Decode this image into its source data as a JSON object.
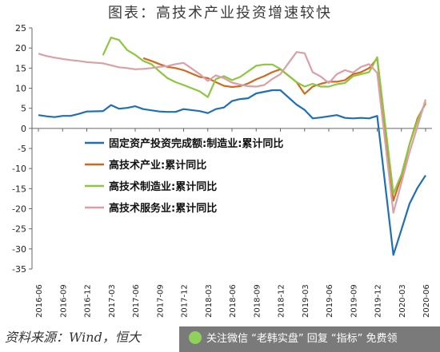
{
  "title": "图表：高技术产业投资增速较快",
  "source": "资料来源：Wind，恒大",
  "watermark": {
    "text": "关注微信 “老韩实盘” 回复 “指标” 免费领",
    "icon": "wechat-icon"
  },
  "chart_data": {
    "type": "line",
    "ylim": [
      -35,
      25
    ],
    "yticks": [
      25,
      20,
      15,
      10,
      5,
      0,
      -5,
      -10,
      -15,
      -20,
      -25,
      -30,
      -35
    ],
    "xticks": [
      "2016-06",
      "2016-09",
      "2016-12",
      "2017-03",
      "2017-06",
      "2017-09",
      "2017-12",
      "2018-03",
      "2018-06",
      "2018-09",
      "2018-12",
      "2019-03",
      "2019-06",
      "2019-09",
      "2019-12",
      "2020-03",
      "2020-06"
    ],
    "x": [
      "2016-06",
      "2016-07",
      "2016-08",
      "2016-09",
      "2016-10",
      "2016-11",
      "2016-12",
      "2017-02",
      "2017-03",
      "2017-04",
      "2017-05",
      "2017-06",
      "2017-07",
      "2017-08",
      "2017-09",
      "2017-10",
      "2017-11",
      "2017-12",
      "2018-02",
      "2018-03",
      "2018-04",
      "2018-05",
      "2018-06",
      "2018-07",
      "2018-08",
      "2018-09",
      "2018-10",
      "2018-11",
      "2018-12",
      "2019-02",
      "2019-03",
      "2019-04",
      "2019-05",
      "2019-06",
      "2019-07",
      "2019-08",
      "2019-09",
      "2019-10",
      "2019-11",
      "2019-12",
      "2020-02",
      "2020-03",
      "2020-04",
      "2020-05",
      "2020-06"
    ],
    "series": [
      {
        "name": "固定资产投资完成额:制造业:累计同比",
        "color": "#1f6fb5",
        "values": [
          3.3,
          3.0,
          2.8,
          3.1,
          3.1,
          3.6,
          4.2,
          4.3,
          5.8,
          4.9,
          5.1,
          5.5,
          4.8,
          4.5,
          4.2,
          4.1,
          4.1,
          4.8,
          4.3,
          3.8,
          4.8,
          5.2,
          6.8,
          7.3,
          7.5,
          8.7,
          9.1,
          9.5,
          9.5,
          5.9,
          4.6,
          2.5,
          2.7,
          3.0,
          3.3,
          2.6,
          2.5,
          2.6,
          2.5,
          3.1,
          -31.5,
          -25.2,
          -18.8,
          -14.8,
          -11.7
        ]
      },
      {
        "name": "高技术产业:累计同比",
        "color": "#d2691e",
        "values": [
          null,
          null,
          null,
          null,
          null,
          null,
          null,
          null,
          null,
          null,
          null,
          null,
          17.5,
          16.8,
          16.0,
          15.3,
          15.0,
          14.5,
          12.8,
          12.5,
          11.5,
          10.6,
          10.3,
          10.5,
          11.2,
          12.2,
          13.0,
          14.0,
          14.7,
          11.5,
          8.6,
          10.4,
          11.1,
          11.6,
          11.6,
          12.0,
          13.5,
          14.0,
          15.0,
          17.4,
          -18.0,
          -12.0,
          -4.0,
          2.5,
          6.2
        ]
      },
      {
        "name": "高技术制造业:累计同比",
        "color": "#8dc63f",
        "values": [
          null,
          null,
          null,
          null,
          null,
          null,
          null,
          18.2,
          22.6,
          22.0,
          19.5,
          18.3,
          16.8,
          16.0,
          14.2,
          12.5,
          11.5,
          10.8,
          9.2,
          7.8,
          12.3,
          13.0,
          12.0,
          12.8,
          14.2,
          15.6,
          15.9,
          15.9,
          14.8,
          11.5,
          10.4,
          11.1,
          10.4,
          10.4,
          11.0,
          11.3,
          13.0,
          13.5,
          14.0,
          17.7,
          -16.2,
          -11.5,
          -4.0,
          2.0,
          6.6
        ]
      },
      {
        "name": "高技术服务业:累计同比",
        "color": "#d9a0a8",
        "values": [
          18.6,
          18.0,
          17.6,
          17.3,
          17.0,
          16.8,
          16.5,
          16.2,
          15.7,
          15.2,
          15.0,
          14.7,
          14.8,
          15.0,
          15.3,
          15.5,
          16.0,
          16.3,
          13.5,
          11.8,
          13.2,
          12.5,
          11.4,
          10.9,
          10.5,
          10.4,
          10.8,
          12.3,
          13.5,
          19.0,
          18.7,
          14.0,
          12.9,
          11.3,
          13.5,
          14.5,
          13.9,
          15.3,
          16.0,
          13.8,
          -21.0,
          -13.5,
          -6.0,
          0.5,
          7.2
        ]
      }
    ]
  }
}
